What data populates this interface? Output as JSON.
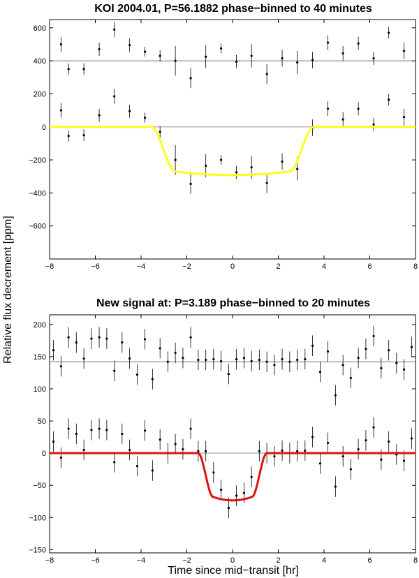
{
  "shared": {
    "xlabel": "Time since mid−transit [hr]",
    "ylabel": "Relative flux decrement [ppm]"
  },
  "chart_data": [
    {
      "type": "scatter",
      "title": "KOI 2004.01, P=56.1882 phase−binned to 40 minutes",
      "xlim": [
        -8,
        8
      ],
      "ylim": [
        -800,
        650
      ],
      "xticks": [
        -8,
        -6,
        -4,
        -2,
        0,
        2,
        4,
        6,
        8
      ],
      "yticks": [
        -600,
        -400,
        -200,
        0,
        200,
        400,
        600
      ],
      "offset": 400,
      "model_color": "#ffff1a",
      "model": {
        "depth": 270,
        "t_in0": -3.55,
        "t_in1": -2.5,
        "t_out0": 2.5,
        "t_out1": 3.55
      },
      "x": [
        -7.5,
        -7.17,
        -6.5,
        -5.83,
        -5.17,
        -4.5,
        -3.83,
        -3.17,
        -2.5,
        -1.83,
        -1.17,
        -0.5,
        0.17,
        0.83,
        1.5,
        2.17,
        2.83,
        3.5,
        4.17,
        4.83,
        5.5,
        6.17,
        6.83,
        7.5
      ],
      "raw": [
        500,
        350,
        350,
        470,
        590,
        495,
        455,
        430,
        400,
        295,
        425,
        475,
        395,
        430,
        320,
        415,
        390,
        405,
        510,
        445,
        505,
        415,
        570,
        460
      ],
      "err": [
        45,
        35,
        35,
        40,
        45,
        40,
        30,
        35,
        90,
        60,
        70,
        30,
        40,
        70,
        60,
        50,
        70,
        50,
        45,
        45,
        40,
        40,
        35,
        50
      ],
      "detrended": [
        100,
        -55,
        -50,
        70,
        185,
        95,
        55,
        -30,
        -200,
        -345,
        -235,
        -200,
        -275,
        -245,
        -340,
        -210,
        -255,
        -5,
        110,
        45,
        110,
        15,
        165,
        60
      ]
    },
    {
      "type": "scatter",
      "title": "New signal at: P=3.189 phase−binned to 20 minutes",
      "xlim": [
        -8,
        8
      ],
      "ylim": [
        -155,
        215
      ],
      "xticks": [
        -8,
        -6,
        -4,
        -2,
        0,
        2,
        4,
        6,
        8
      ],
      "yticks": [
        -150,
        -100,
        -50,
        0,
        50,
        100,
        150,
        200
      ],
      "offset": 142,
      "model_color": "#dd1111",
      "model": {
        "depth": 68,
        "t_in0": -1.5,
        "t_in1": -0.85,
        "t_out0": 0.85,
        "t_out1": 1.5
      },
      "x": [
        -7.83,
        -7.5,
        -7.17,
        -6.83,
        -6.5,
        -6.17,
        -5.83,
        -5.5,
        -5.17,
        -4.83,
        -4.5,
        -4.17,
        -3.83,
        -3.5,
        -3.17,
        -2.83,
        -2.5,
        -2.17,
        -1.83,
        -1.5,
        -1.17,
        -0.83,
        -0.5,
        -0.17,
        0.17,
        0.5,
        0.83,
        1.17,
        1.5,
        1.83,
        2.17,
        2.5,
        2.83,
        3.17,
        3.5,
        3.83,
        4.17,
        4.5,
        4.83,
        5.17,
        5.5,
        5.83,
        6.17,
        6.5,
        6.83,
        7.17,
        7.5,
        7.83
      ],
      "raw": [
        160,
        135,
        180,
        172,
        147,
        178,
        180,
        178,
        128,
        172,
        147,
        122,
        177,
        115,
        163,
        142,
        156,
        148,
        180,
        145,
        145,
        146,
        143,
        123,
        146,
        148,
        143,
        145,
        142,
        137,
        146,
        142,
        145,
        146,
        167,
        126,
        158,
        90,
        137,
        117,
        148,
        162,
        182,
        132,
        160,
        140,
        130,
        165
      ],
      "err": [
        16,
        16,
        16,
        16,
        16,
        16,
        16,
        16,
        16,
        16,
        16,
        16,
        16,
        16,
        16,
        16,
        16,
        16,
        16,
        16,
        16,
        16,
        16,
        16,
        16,
        16,
        16,
        16,
        16,
        16,
        16,
        16,
        16,
        16,
        16,
        16,
        16,
        16,
        16,
        16,
        16,
        16,
        16,
        16,
        16,
        16,
        16,
        16
      ],
      "detrended": [
        18,
        -7,
        38,
        30,
        5,
        36,
        38,
        36,
        -14,
        30,
        5,
        -20,
        35,
        -27,
        21,
        0,
        14,
        6,
        38,
        3,
        3,
        -30,
        -57,
        -85,
        -66,
        -62,
        -37,
        3,
        0,
        -5,
        4,
        0,
        3,
        4,
        25,
        -16,
        16,
        -52,
        -5,
        -25,
        6,
        20,
        40,
        -10,
        18,
        -2,
        -12,
        23
      ]
    }
  ]
}
